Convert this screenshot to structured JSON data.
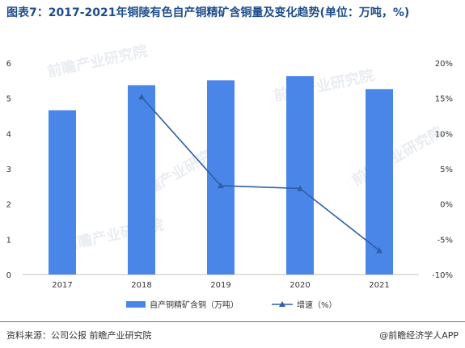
{
  "title": "图表7：2017-2021年铜陵有色自产铜精矿含铜量及变化趋势(单位：万吨，%)",
  "footer": {
    "source": "资料来源：公司公报 前瞻产业研究院",
    "brand": "@前瞻经济学人APP"
  },
  "watermark": "前瞻产业研究院",
  "colors": {
    "bar": "#4a86e8",
    "line": "#2f5fa8"
  },
  "chart_data": {
    "type": "bar",
    "categories": [
      "2017",
      "2018",
      "2019",
      "2020",
      "2021"
    ],
    "series": [
      {
        "name": "自产铜精矿含铜（万吨）",
        "type": "bar",
        "axis": "left",
        "values": [
          4.66,
          5.37,
          5.51,
          5.63,
          5.26
        ]
      },
      {
        "name": "增速（%）",
        "type": "line",
        "axis": "right",
        "values": [
          null,
          15.2,
          2.6,
          2.2,
          -6.6
        ]
      }
    ],
    "y_left": {
      "min": 0,
      "max": 6,
      "ticks": [
        "0",
        "1",
        "2",
        "3",
        "4",
        "5",
        "6"
      ]
    },
    "y_right": {
      "min": -10,
      "max": 20,
      "ticks": [
        "-10%",
        "-5%",
        "0%",
        "5%",
        "10%",
        "15%",
        "20%"
      ]
    },
    "legend_position": "bottom",
    "grid": false
  }
}
